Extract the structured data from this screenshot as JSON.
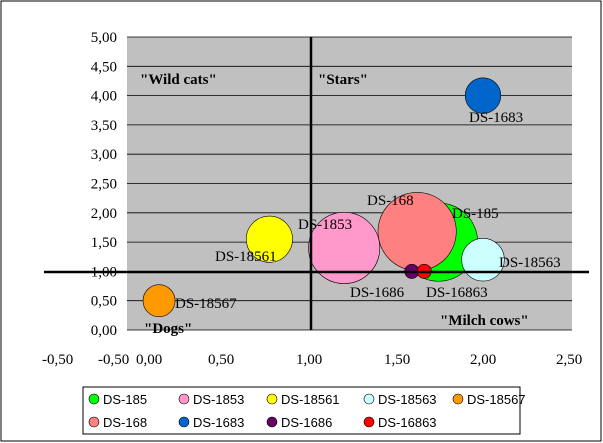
{
  "chart_data": {
    "type": "bubble",
    "xlim": [
      -0.5,
      2.5
    ],
    "ylim": [
      0,
      5
    ],
    "x_ticks": [
      "-0,50",
      "-0,50",
      "0,00",
      "0,50",
      "1,00",
      "1,50",
      "2,00",
      "2,50"
    ],
    "y_ticks": [
      "0,00",
      "0,50",
      "1,00",
      "1,50",
      "2,00",
      "2,50",
      "3,00",
      "3,50",
      "4,00",
      "4,50",
      "5,00"
    ],
    "y_tick_values": [
      0,
      0.5,
      1,
      1.5,
      2,
      2.5,
      3,
      3.5,
      4,
      4.5,
      5
    ],
    "quadrant_labels": [
      "\"Wild cats\"",
      "\"Stars\"",
      "\"Dogs\"",
      "\"Milch cows\""
    ],
    "reference_lines": {
      "x": 1.0,
      "y": 1.0
    },
    "grid": "horizontal",
    "legend_position": "bottom",
    "colors": {
      "plot_area": "#c0c0c0",
      "grid": "#000000"
    },
    "series": [
      {
        "name": "DS-185",
        "x": 1.75,
        "y": 1.5,
        "size": 0.22,
        "color": "#00ff00"
      },
      {
        "name": "DS-1853",
        "x": 1.22,
        "y": 1.4,
        "size": 0.2,
        "color": "#ff99cc"
      },
      {
        "name": "DS-18561",
        "x": 0.8,
        "y": 1.55,
        "size": 0.13,
        "color": "#ffff00"
      },
      {
        "name": "DS-18563",
        "x": 2.0,
        "y": 1.2,
        "size": 0.12,
        "color": "#ccffff"
      },
      {
        "name": "DS-18567",
        "x": 0.18,
        "y": 0.5,
        "size": 0.09,
        "color": "#ff9900"
      },
      {
        "name": "DS-168",
        "x": 1.63,
        "y": 1.68,
        "size": 0.22,
        "color": "#ff8080"
      },
      {
        "name": "DS-1683",
        "x": 2.0,
        "y": 4.0,
        "size": 0.1,
        "color": "#0066cc"
      },
      {
        "name": "DS-1686",
        "x": 1.6,
        "y": 1.0,
        "size": 0.04,
        "color": "#660066"
      },
      {
        "name": "DS-16863",
        "x": 1.67,
        "y": 1.0,
        "size": 0.04,
        "color": "#ff0000"
      }
    ]
  }
}
